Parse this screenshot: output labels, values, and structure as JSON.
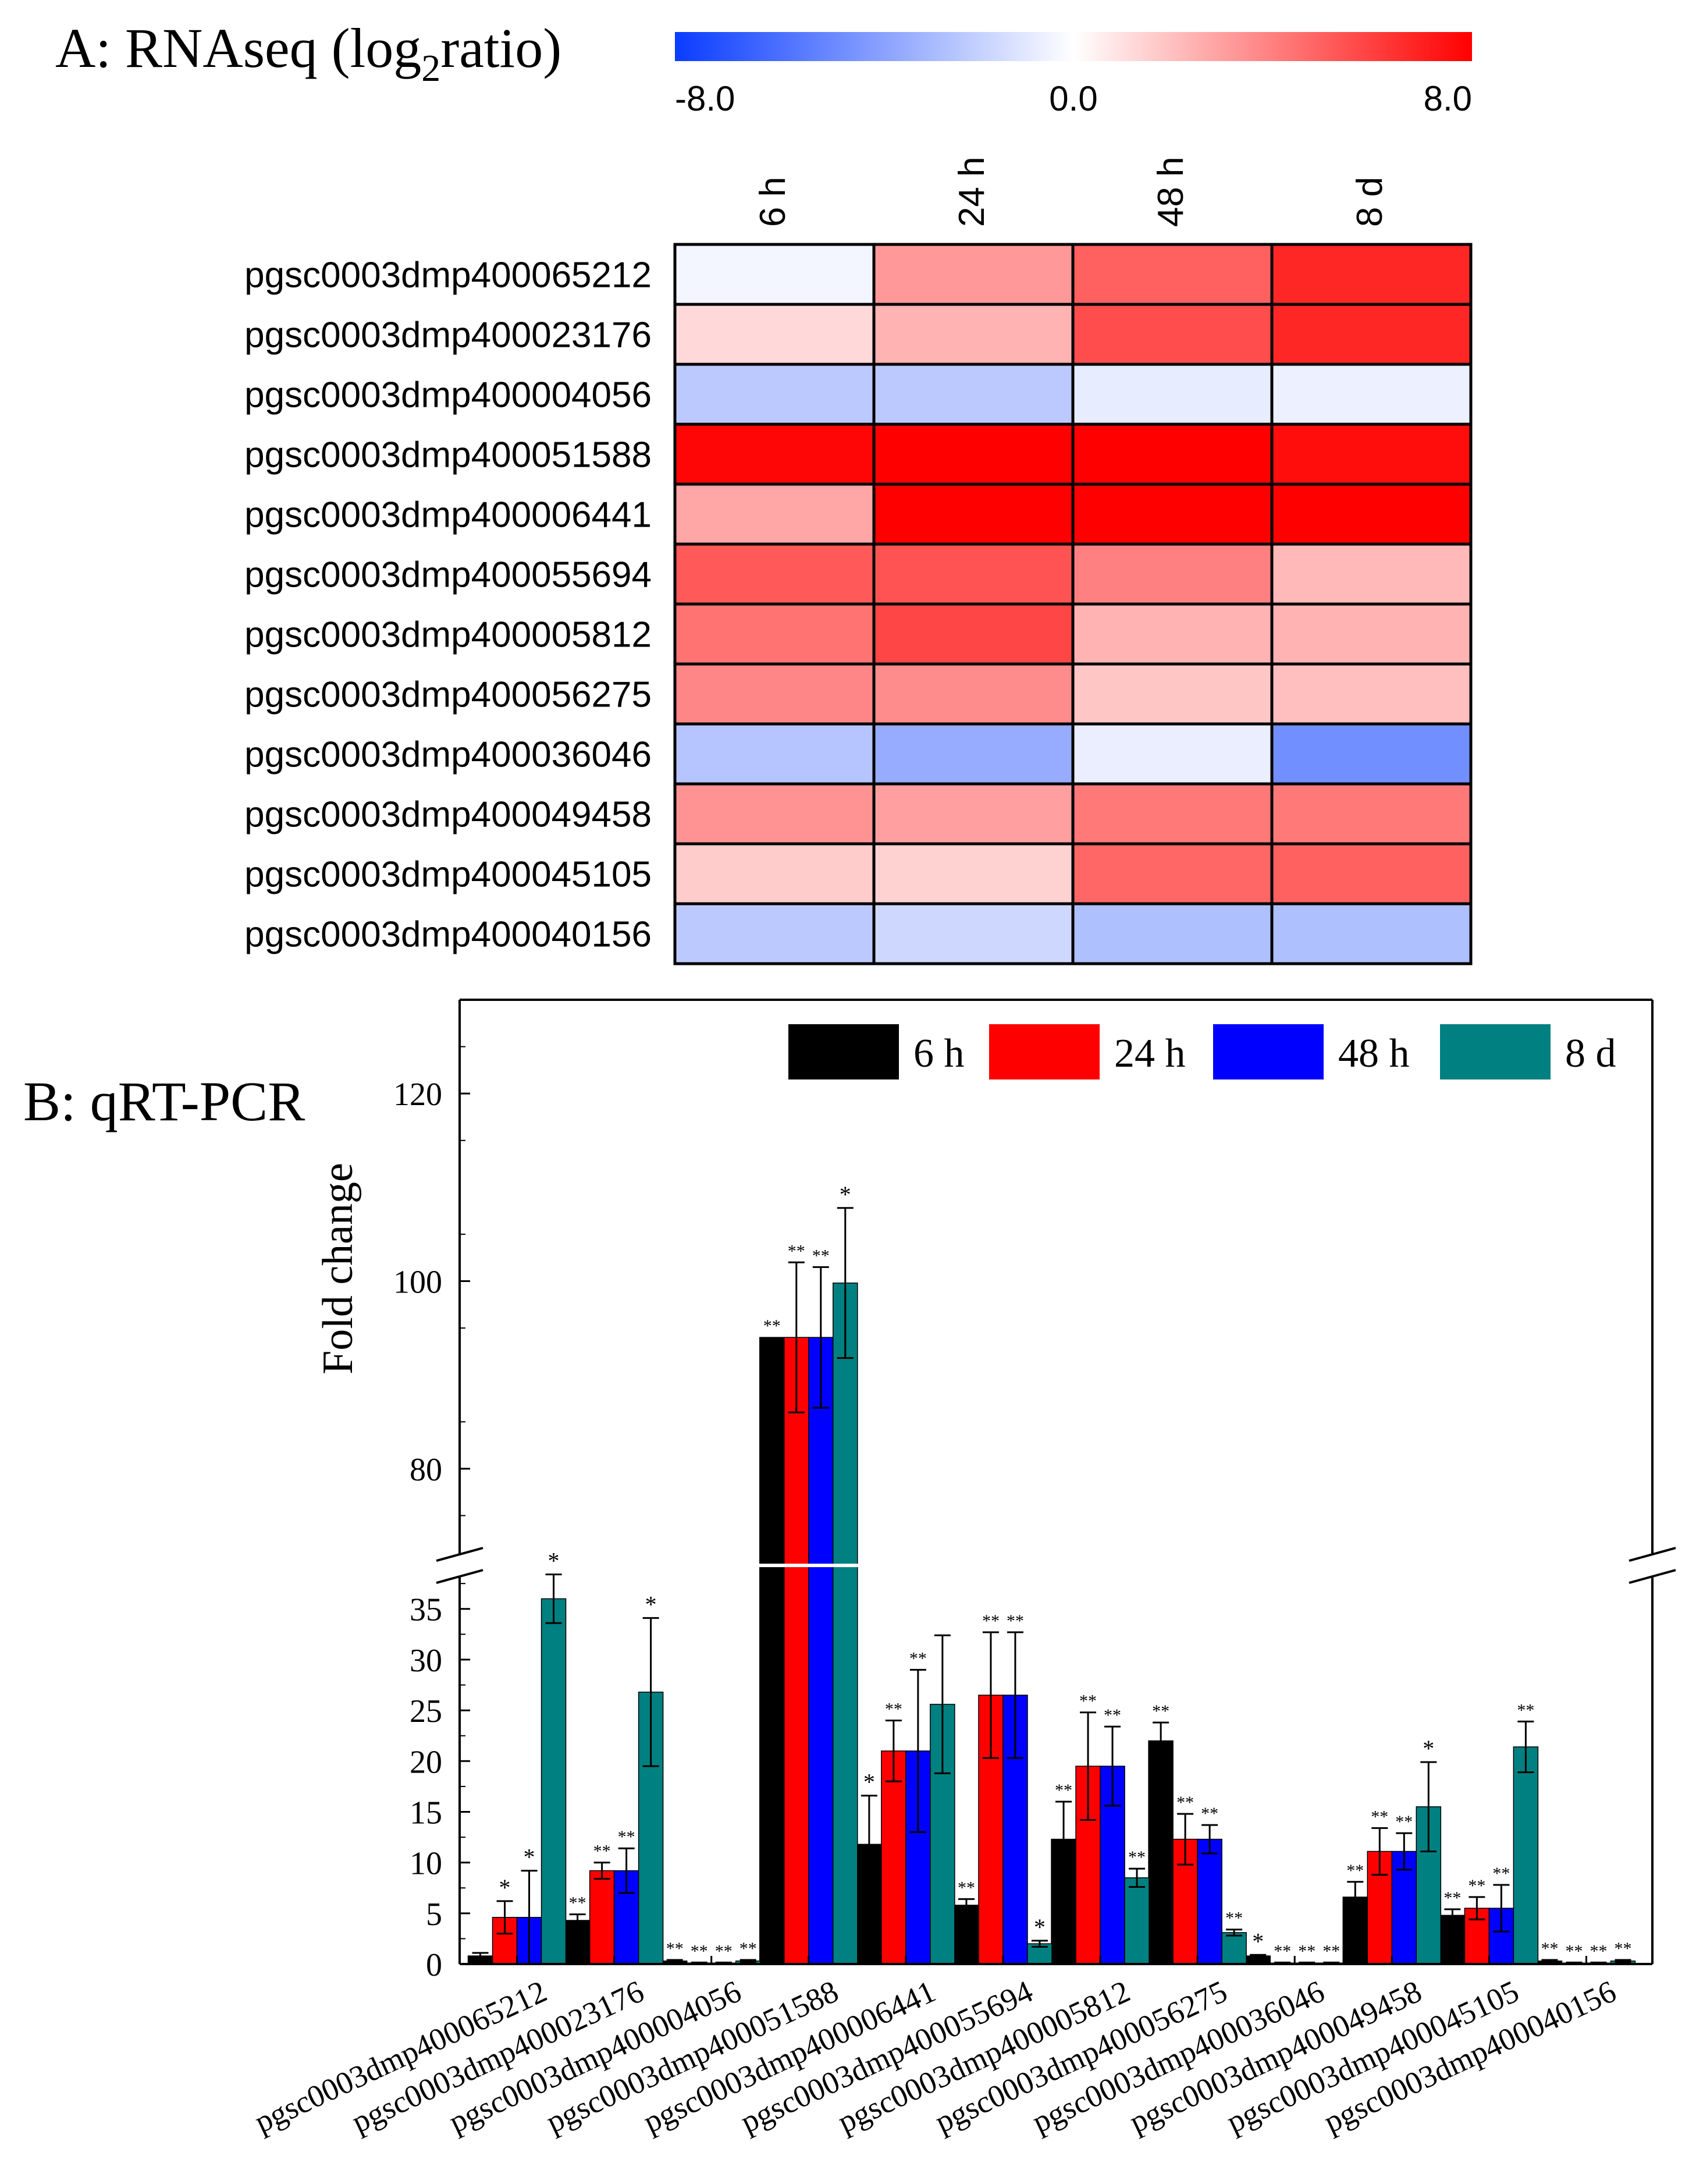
{
  "panel_a": {
    "title_prefix": "A: RNAseq (log",
    "title_sub": "2",
    "title_suffix": "ratio)"
  },
  "panel_b": {
    "title": "B: qRT-PCR"
  },
  "colors": {
    "neg": "#0a3cff",
    "mid": "#ffffff",
    "pos": "#ff0000",
    "s6h": "#000000",
    "s24h": "#ff0000",
    "s48h": "#0000ff",
    "s8d": "#008080"
  },
  "chart_data": [
    {
      "type": "heatmap",
      "title": "A: RNAseq (log2ratio)",
      "colorbar": {
        "min": -8.0,
        "mid": 0.0,
        "max": 8.0,
        "tick_labels": [
          "-8.0",
          "0.0",
          "8.0"
        ]
      },
      "columns": [
        "6 h",
        "24 h",
        "48 h",
        "8 d"
      ],
      "rows": [
        "pgsc0003dmp400065212",
        "pgsc0003dmp400023176",
        "pgsc0003dmp400004056",
        "pgsc0003dmp400051588",
        "pgsc0003dmp400006441",
        "pgsc0003dmp400055694",
        "pgsc0003dmp400005812",
        "pgsc0003dmp400056275",
        "pgsc0003dmp400036046",
        "pgsc0003dmp400049458",
        "pgsc0003dmp400045105",
        "pgsc0003dmp400040156"
      ],
      "values": [
        [
          -0.4,
          3.2,
          5.0,
          6.8
        ],
        [
          1.2,
          2.4,
          5.6,
          6.8
        ],
        [
          -2.2,
          -2.2,
          -0.8,
          -0.6
        ],
        [
          7.8,
          8.0,
          8.0,
          7.6
        ],
        [
          2.8,
          8.0,
          8.0,
          8.0
        ],
        [
          5.2,
          5.4,
          4.0,
          2.2
        ],
        [
          4.4,
          5.8,
          2.4,
          2.4
        ],
        [
          3.8,
          3.6,
          1.8,
          2.0
        ],
        [
          -2.4,
          -3.4,
          -0.7,
          -4.6
        ],
        [
          3.4,
          3.0,
          4.2,
          4.2
        ],
        [
          1.6,
          1.4,
          4.8,
          5.0
        ],
        [
          -2.2,
          -1.6,
          -2.6,
          -2.6
        ]
      ]
    },
    {
      "type": "bar",
      "title": "B: qRT-PCR",
      "ylabel": "Fold change",
      "xlabel": "",
      "categories": [
        "pgsc0003dmp400065212",
        "pgsc0003dmp400023176",
        "pgsc0003dmp400004056",
        "pgsc0003dmp400051588",
        "pgsc0003dmp400006441",
        "pgsc0003dmp400055694",
        "pgsc0003dmp400005812",
        "pgsc0003dmp400056275",
        "pgsc0003dmp400036046",
        "pgsc0003dmp400049458",
        "pgsc0003dmp400045105",
        "pgsc0003dmp400040156"
      ],
      "broken_axis": {
        "lower": [
          0,
          39
        ],
        "upper": [
          70,
          130
        ]
      },
      "yticks_lower": [
        0,
        5,
        10,
        15,
        20,
        25,
        30,
        35
      ],
      "yticks_upper": [
        80,
        100,
        120
      ],
      "legend_position": "top-right",
      "series": [
        {
          "name": "6 h",
          "values": [
            0.8,
            4.3,
            0.3,
            94,
            11.8,
            5.8,
            12.3,
            22.0,
            0.8,
            6.6,
            4.8,
            0.3
          ],
          "errors": [
            0.3,
            0.6,
            0.1,
            0,
            4.8,
            0.6,
            3.7,
            1.8,
            0.1,
            1.5,
            0.6,
            0.1
          ],
          "sig": [
            "",
            "**",
            "**",
            "**",
            "*",
            "**",
            "**",
            "**",
            "*",
            "**",
            "**",
            "**"
          ]
        },
        {
          "name": "24 h",
          "values": [
            4.6,
            9.2,
            0.1,
            94,
            21.0,
            26.5,
            19.5,
            12.3,
            0.1,
            11.1,
            5.5,
            0.1
          ],
          "errors": [
            1.6,
            0.8,
            0.05,
            8,
            3.0,
            6.2,
            5.3,
            2.5,
            0.05,
            2.3,
            1.1,
            0.05
          ],
          "sig": [
            "*",
            "**",
            "**",
            "**",
            "**",
            "**",
            "**",
            "**",
            "**",
            "**",
            "**",
            "**"
          ]
        },
        {
          "name": "48 h",
          "values": [
            4.6,
            9.2,
            0.1,
            94,
            21.0,
            26.5,
            19.5,
            12.3,
            0.1,
            11.1,
            5.5,
            0.1
          ],
          "errors": [
            4.6,
            2.2,
            0.05,
            7.5,
            8.0,
            6.2,
            3.9,
            1.4,
            0.05,
            1.8,
            2.3,
            0.05
          ],
          "sig": [
            "*",
            "**",
            "**",
            "**",
            "**",
            "**",
            "**",
            "**",
            "**",
            "**",
            "**",
            "**"
          ]
        },
        {
          "name": "8 d",
          "values": [
            36.0,
            26.8,
            0.3,
            99.8,
            25.6,
            2.0,
            8.5,
            3.1,
            0.1,
            15.5,
            21.4,
            0.3
          ],
          "errors": [
            2.4,
            7.3,
            0.1,
            8,
            6.8,
            0.3,
            0.9,
            0.3,
            0.05,
            4.4,
            2.5,
            0.1
          ],
          "sig": [
            "*",
            "*",
            "**",
            "*",
            "",
            "*",
            "**",
            "**",
            "**",
            "*",
            "**",
            "**"
          ]
        }
      ]
    }
  ]
}
